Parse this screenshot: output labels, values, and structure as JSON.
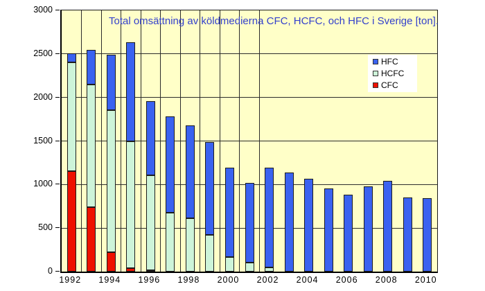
{
  "chart_data": {
    "type": "bar",
    "stacked": true,
    "title": "Total omsättning av köldmedierna CFC, HCFC, och HFC i Sverige [ton].",
    "title_color": "#3340cc",
    "plot_bg": "#ffffc8",
    "categories": [
      "1992",
      "1993",
      "1994",
      "1995",
      "1996",
      "1997",
      "1998",
      "1999",
      "2000",
      "2001",
      "2002",
      "2003",
      "2004",
      "2005",
      "2006",
      "2007",
      "2008",
      "2009",
      "2010"
    ],
    "x_tick_labels": [
      "1992",
      "1994",
      "1996",
      "1998",
      "2000",
      "2002",
      "2004",
      "2006",
      "2008",
      "2010"
    ],
    "series": [
      {
        "name": "CFC",
        "color": "#ee1100",
        "values": [
          1150,
          740,
          225,
          40,
          15,
          0,
          0,
          0,
          0,
          0,
          0,
          0,
          0,
          0,
          0,
          0,
          0,
          0,
          0
        ]
      },
      {
        "name": "HCFC",
        "color": "#cdf4d9",
        "values": [
          1250,
          1410,
          1630,
          1460,
          1090,
          675,
          610,
          420,
          170,
          100,
          50,
          0,
          0,
          0,
          0,
          0,
          0,
          0,
          0
        ]
      },
      {
        "name": "HFC",
        "color": "#3a62f0",
        "values": [
          110,
          395,
          635,
          1135,
          855,
          1110,
          1070,
          1070,
          1020,
          915,
          1140,
          1140,
          1070,
          955,
          880,
          975,
          1040,
          855,
          840
        ]
      }
    ],
    "ylim": [
      0,
      3000
    ],
    "ytick_step": 500,
    "grid": {
      "horizontal": true,
      "vertical_boundaries_after": [
        "1992",
        "1993",
        "1994",
        "1995",
        "1996",
        "1997",
        "1998",
        "1999",
        "2000",
        "2001"
      ]
    },
    "legend": {
      "position": "upper-right",
      "entries": [
        {
          "label": "HFC",
          "color": "#3a62f0"
        },
        {
          "label": "HCFC",
          "color": "#cdf4d9"
        },
        {
          "label": "CFC",
          "color": "#ee1100"
        }
      ]
    }
  }
}
